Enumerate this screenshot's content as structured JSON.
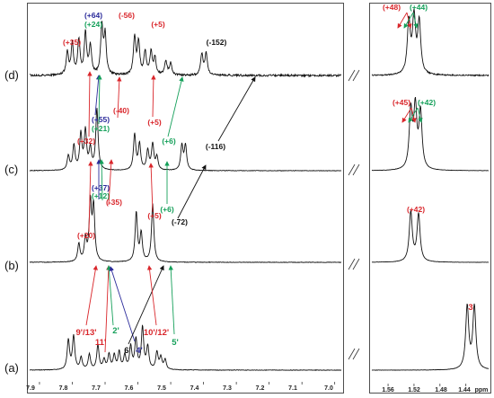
{
  "chart_data": {
    "type": "line",
    "x_unit": "ppm",
    "xlim_left": [
      7.93,
      6.98
    ],
    "xlim_right": [
      1.585,
      1.405
    ],
    "x_ticks_left": [
      "7.9",
      "7.8",
      "7.7",
      "7.6",
      "7.5",
      "7.4",
      "7.3",
      "7.2",
      "7.1",
      "7.0"
    ],
    "x_ticks_right": [
      "1.56",
      "1.52",
      "1.48",
      "1.44",
      "ppm"
    ],
    "colors": {
      "red": "#d9262b",
      "green": "#15a05a",
      "blue": "#2a2a9a",
      "black": "#111111"
    },
    "series": [
      {
        "label": "(a)",
        "peaks": [
          [
            7.812,
            0.55
          ],
          [
            7.796,
            0.62
          ],
          [
            7.773,
            0.22
          ],
          [
            7.748,
            0.28
          ],
          [
            7.722,
            0.45
          ],
          [
            7.703,
            0.18
          ],
          [
            7.688,
            0.28
          ],
          [
            7.672,
            0.26
          ],
          [
            7.657,
            0.32
          ],
          [
            7.64,
            0.26
          ],
          [
            7.622,
            0.42
          ],
          [
            7.606,
            0.55
          ],
          [
            7.586,
            0.78
          ],
          [
            7.57,
            0.42
          ],
          [
            7.542,
            0.32
          ],
          [
            7.53,
            0.22
          ],
          [
            7.517,
            0.18
          ]
        ],
        "right_peaks": [
          [
            1.438,
            1.0
          ],
          [
            1.427,
            1.0
          ]
        ]
      },
      {
        "label": "(b)",
        "peaks": [
          [
            7.78,
            0.28
          ],
          [
            7.76,
            0.35
          ],
          [
            7.745,
            0.92
          ],
          [
            7.735,
            0.85
          ],
          [
            7.605,
            0.78
          ],
          [
            7.59,
            0.45
          ],
          [
            7.555,
            0.92
          ]
        ],
        "right_peaks": [
          [
            1.525,
            0.92
          ],
          [
            1.513,
            0.88
          ]
        ]
      },
      {
        "label": "(c)",
        "peaks": [
          [
            7.812,
            0.22
          ],
          [
            7.795,
            0.38
          ],
          [
            7.774,
            0.55
          ],
          [
            7.76,
            0.6
          ],
          [
            7.745,
            0.32
          ],
          [
            7.725,
            0.95
          ],
          [
            7.61,
            0.55
          ],
          [
            7.595,
            0.4
          ],
          [
            7.57,
            0.3
          ],
          [
            7.555,
            0.4
          ],
          [
            7.542,
            0.2
          ],
          [
            7.466,
            0.38
          ],
          [
            7.455,
            0.38
          ]
        ],
        "right_peaks": [
          [
            1.525,
            0.92
          ],
          [
            1.518,
            0.95
          ],
          [
            1.51,
            0.9
          ]
        ]
      },
      {
        "label": "(d)",
        "peaks": [
          [
            7.815,
            0.4
          ],
          [
            7.8,
            0.55
          ],
          [
            7.78,
            0.62
          ],
          [
            7.76,
            0.75
          ],
          [
            7.745,
            0.52
          ],
          [
            7.71,
            0.85
          ],
          [
            7.7,
            0.7
          ],
          [
            7.61,
            0.68
          ],
          [
            7.598,
            0.58
          ],
          [
            7.578,
            0.42
          ],
          [
            7.56,
            0.4
          ],
          [
            7.548,
            0.3
          ],
          [
            7.515,
            0.25
          ],
          [
            7.5,
            0.22
          ],
          [
            7.405,
            0.38
          ],
          [
            7.392,
            0.4
          ]
        ],
        "right_peaks": [
          [
            1.528,
            0.9
          ],
          [
            1.52,
            0.95
          ],
          [
            1.512,
            0.88
          ]
        ]
      }
    ],
    "annotations": [
      {
        "text": "(+64)",
        "color": "blue",
        "panel": "(d)",
        "ppm": 7.745
      },
      {
        "text": "(+24)",
        "color": "green",
        "panel": "(d)",
        "ppm": 7.745
      },
      {
        "text": "(+35)",
        "color": "red",
        "panel": "(d)",
        "ppm": 7.805
      },
      {
        "text": "(-56)",
        "color": "red",
        "panel": "(d)",
        "ppm": 7.7
      },
      {
        "text": "(+5)",
        "color": "red",
        "panel": "(d)",
        "ppm": 7.6
      },
      {
        "text": "(-152)",
        "color": "black",
        "panel": "(d)",
        "ppm": 7.4
      },
      {
        "text": "(+48)",
        "color": "red",
        "panel": "(d)",
        "ppm": 1.528
      },
      {
        "text": "(+44)",
        "color": "green",
        "panel": "(d)",
        "ppm": 1.51
      },
      {
        "text": "(+55)",
        "color": "blue",
        "panel": "(c)",
        "ppm": 7.765
      },
      {
        "text": "(+21)",
        "color": "green",
        "panel": "(c)",
        "ppm": 7.765
      },
      {
        "text": "(-40)",
        "color": "red",
        "panel": "(c)",
        "ppm": 7.725
      },
      {
        "text": "(+32)",
        "color": "red",
        "panel": "(c)",
        "ppm": 7.805
      },
      {
        "text": "(+5)",
        "color": "red",
        "panel": "(c)",
        "ppm": 7.605
      },
      {
        "text": "(+6)",
        "color": "green",
        "panel": "(c)",
        "ppm": 7.555
      },
      {
        "text": "(-116)",
        "color": "black",
        "panel": "(c)",
        "ppm": 7.46
      },
      {
        "text": "(+45)",
        "color": "red",
        "panel": "(c)",
        "ppm": 1.528
      },
      {
        "text": "(+42)",
        "color": "green",
        "panel": "(c)",
        "ppm": 1.51
      },
      {
        "text": "(+37)",
        "color": "blue",
        "panel": "(b)",
        "ppm": 7.765
      },
      {
        "text": "(+12)",
        "color": "green",
        "panel": "(b)",
        "ppm": 7.765
      },
      {
        "text": "(-35)",
        "color": "red",
        "panel": "(b)",
        "ppm": 7.74
      },
      {
        "text": "(+6)",
        "color": "green",
        "panel": "(b)",
        "ppm": 7.555
      },
      {
        "text": "(+20)",
        "color": "red",
        "panel": "(b)",
        "ppm": 7.79
      },
      {
        "text": "(+5)",
        "color": "red",
        "panel": "(b)",
        "ppm": 7.605
      },
      {
        "text": "(-72)",
        "color": "black",
        "panel": "(b)",
        "ppm": 7.555
      },
      {
        "text": "(+42)",
        "color": "red",
        "panel": "(b)",
        "ppm": 1.52
      }
    ],
    "assignments": [
      {
        "text": "9'/13'",
        "color": "red",
        "ppm": 7.8
      },
      {
        "text": "11'",
        "color": "red",
        "ppm": 7.72
      },
      {
        "text": "2'",
        "color": "green",
        "ppm": 7.75
      },
      {
        "text": "6'",
        "color": "black",
        "ppm": 7.68
      },
      {
        "text": "4'",
        "color": "blue",
        "ppm": 7.66
      },
      {
        "text": "10'/12'",
        "color": "red",
        "ppm": 7.59
      },
      {
        "text": "5'",
        "color": "green",
        "ppm": 7.53
      },
      {
        "text": "3",
        "color": "red",
        "ppm": 1.43
      }
    ],
    "break_mark": "//"
  }
}
